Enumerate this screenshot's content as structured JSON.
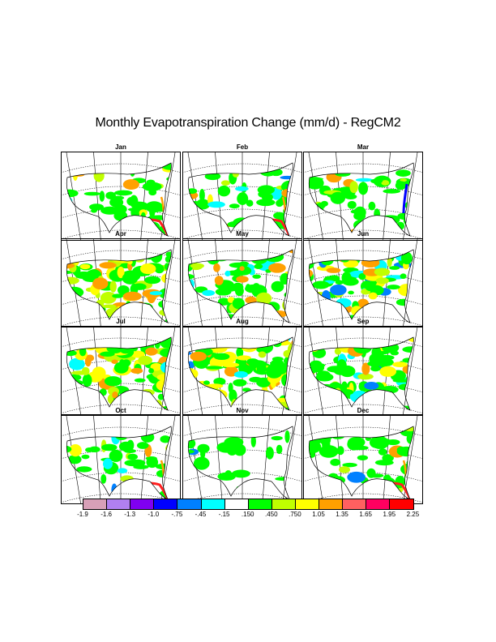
{
  "title": "Monthly Evapotranspiration Change (mm/d) - RegCM2",
  "panels": [
    {
      "month": "Jan",
      "pattern": "coastal-rim"
    },
    {
      "month": "Feb",
      "pattern": "coastal-rim"
    },
    {
      "month": "Mar",
      "pattern": "east-mixed"
    },
    {
      "month": "Apr",
      "pattern": "widespread-positive"
    },
    {
      "month": "May",
      "pattern": "widespread-mixed"
    },
    {
      "month": "Jun",
      "pattern": "widespread-negative-southwest"
    },
    {
      "month": "Jul",
      "pattern": "widespread-positive"
    },
    {
      "month": "Aug",
      "pattern": "widespread-positive"
    },
    {
      "month": "Sep",
      "pattern": "widespread-mixed"
    },
    {
      "month": "Oct",
      "pattern": "coastal-rim"
    },
    {
      "month": "Nov",
      "pattern": "sparse"
    },
    {
      "month": "Dec",
      "pattern": "coastal-rim"
    }
  ],
  "legend": {
    "colors": [
      "#d8a0b8",
      "#b080f0",
      "#8000f0",
      "#0000ff",
      "#0080ff",
      "#00ffff",
      "#ffffff",
      "#00ff00",
      "#c0ff00",
      "#ffff00",
      "#ffa000",
      "#ff6060",
      "#ff0060",
      "#ff0000"
    ],
    "labels": [
      "-1.9",
      "-1.6",
      "-1.3",
      "-1.0",
      "-.75",
      "-.45",
      "-.15",
      ".150",
      ".450",
      ".750",
      "1.05",
      "1.35",
      "1.65",
      "1.95",
      "2.25"
    ]
  }
}
